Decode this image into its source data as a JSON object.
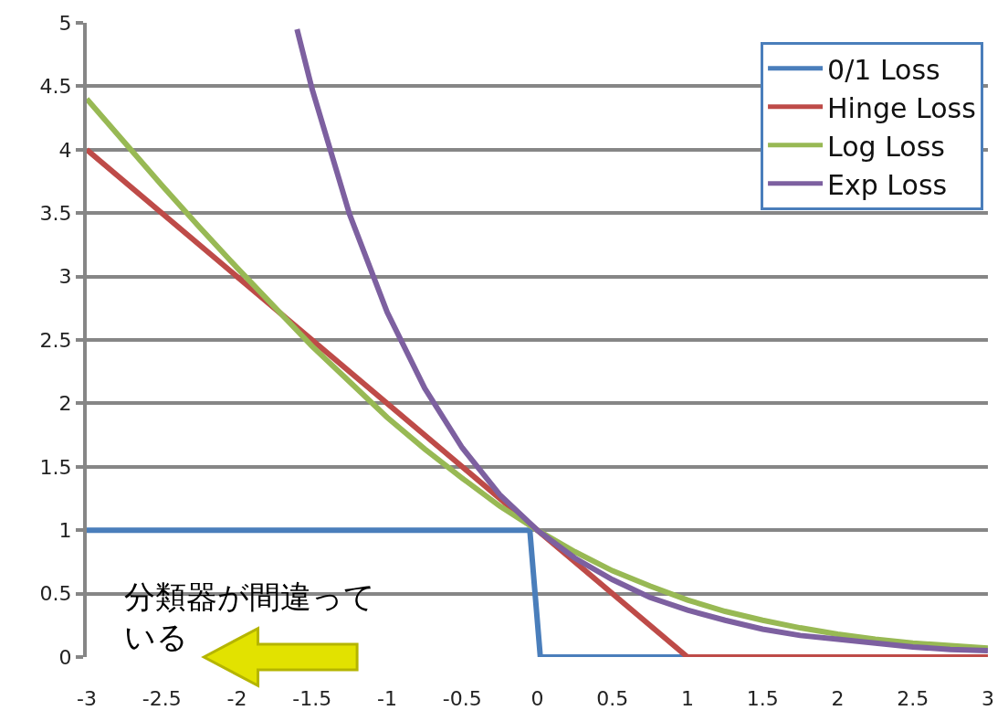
{
  "chart_data": {
    "type": "line",
    "series": [
      {
        "name": "0/1 Loss",
        "color": "#4a7ebb",
        "x": [
          -3,
          -0.05,
          0.02,
          3
        ],
        "values": [
          1,
          1,
          0,
          0
        ]
      },
      {
        "name": "Hinge Loss",
        "color": "#be4b48",
        "x": [
          -3,
          1,
          3
        ],
        "values": [
          4,
          0,
          0
        ]
      },
      {
        "name": "Log Loss",
        "color": "#98b954",
        "x": [
          -3,
          -2.75,
          -2.5,
          -2.25,
          -2,
          -1.75,
          -1.5,
          -1.25,
          -1,
          -0.75,
          -0.5,
          -0.25,
          0,
          0.25,
          0.5,
          0.75,
          1,
          1.25,
          1.5,
          1.75,
          2,
          2.25,
          2.5,
          2.75,
          3
        ],
        "values": [
          4.4,
          4.06,
          3.72,
          3.39,
          3.07,
          2.76,
          2.45,
          2.17,
          1.89,
          1.64,
          1.41,
          1.19,
          1,
          0.83,
          0.68,
          0.56,
          0.45,
          0.36,
          0.29,
          0.23,
          0.18,
          0.14,
          0.11,
          0.09,
          0.07
        ]
      },
      {
        "name": "Exp Loss",
        "color": "#7d60a0",
        "x": [
          -1.6,
          -1.5,
          -1.25,
          -1,
          -0.75,
          -0.5,
          -0.25,
          0,
          0.25,
          0.5,
          0.75,
          1,
          1.25,
          1.5,
          1.75,
          2,
          2.25,
          2.5,
          2.75,
          3
        ],
        "values": [
          4.95,
          4.48,
          3.49,
          2.72,
          2.12,
          1.65,
          1.28,
          1,
          0.78,
          0.61,
          0.47,
          0.37,
          0.29,
          0.22,
          0.17,
          0.14,
          0.11,
          0.08,
          0.06,
          0.05
        ]
      }
    ],
    "xlim": [
      -3,
      3
    ],
    "xticks": [
      -3,
      -2.5,
      -2,
      -1.5,
      -1,
      -0.5,
      0,
      0.5,
      1,
      1.5,
      2,
      2.5,
      3
    ],
    "ylim": [
      0,
      5
    ],
    "yticks": [
      0,
      0.5,
      1,
      1.5,
      2,
      2.5,
      3,
      3.5,
      4,
      4.5,
      5
    ],
    "grid": "y",
    "legend": "top right",
    "marker": "none",
    "line_style": "solid",
    "annotations": [
      "分類器が間違っている"
    ]
  }
}
